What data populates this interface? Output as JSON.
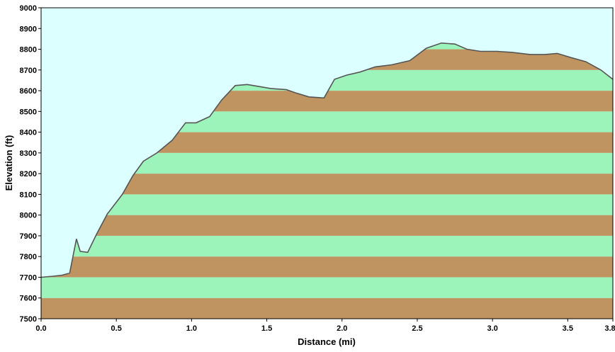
{
  "chart_data": {
    "type": "area",
    "xlabel": "Distance  (mi)",
    "ylabel": "Elevation (ft)",
    "xlim": [
      0.0,
      3.8
    ],
    "ylim": [
      7500,
      9000
    ],
    "x_ticks": [
      0.0,
      0.5,
      1.0,
      1.5,
      2.0,
      2.5,
      3.0,
      3.5,
      3.8
    ],
    "x_tick_labels": [
      "0.0",
      "0.5",
      "1.0",
      "1.5",
      "2.0",
      "2.5",
      "3.0",
      "3.5",
      "3.8"
    ],
    "y_ticks": [
      7500,
      7600,
      7700,
      7800,
      7900,
      8000,
      8100,
      8200,
      8300,
      8400,
      8500,
      8600,
      8700,
      8800,
      8900,
      9000
    ],
    "y_tick_labels": [
      "7500",
      "7600",
      "7700",
      "7800",
      "7900",
      "8000",
      "8100",
      "8200",
      "8300",
      "8400",
      "8500",
      "8600",
      "8700",
      "8800",
      "8900",
      "9000"
    ],
    "band_step": 100,
    "grid": false,
    "x": [
      0.0,
      0.08,
      0.14,
      0.19,
      0.235,
      0.26,
      0.31,
      0.37,
      0.44,
      0.54,
      0.61,
      0.68,
      0.77,
      0.87,
      0.96,
      1.03,
      1.12,
      1.2,
      1.29,
      1.37,
      1.45,
      1.53,
      1.63,
      1.69,
      1.78,
      1.88,
      1.95,
      2.03,
      2.12,
      2.22,
      2.33,
      2.45,
      2.56,
      2.66,
      2.75,
      2.83,
      2.92,
      3.03,
      3.13,
      3.25,
      3.35,
      3.43,
      3.52,
      3.62,
      3.72,
      3.8
    ],
    "y": [
      7700,
      7705,
      7710,
      7720,
      7885,
      7825,
      7820,
      7910,
      8005,
      8100,
      8190,
      8260,
      8300,
      8360,
      8445,
      8445,
      8475,
      8555,
      8625,
      8630,
      8620,
      8610,
      8605,
      8590,
      8570,
      8565,
      8655,
      8675,
      8690,
      8715,
      8725,
      8745,
      8805,
      8830,
      8825,
      8800,
      8790,
      8790,
      8785,
      8775,
      8775,
      8780,
      8760,
      8740,
      8700,
      8655
    ],
    "colors": {
      "sky": "#dcffff",
      "band_green": "#9cf4bb",
      "band_brown": "#c09461",
      "profile_line": "#555555",
      "frame": "#000000"
    }
  }
}
